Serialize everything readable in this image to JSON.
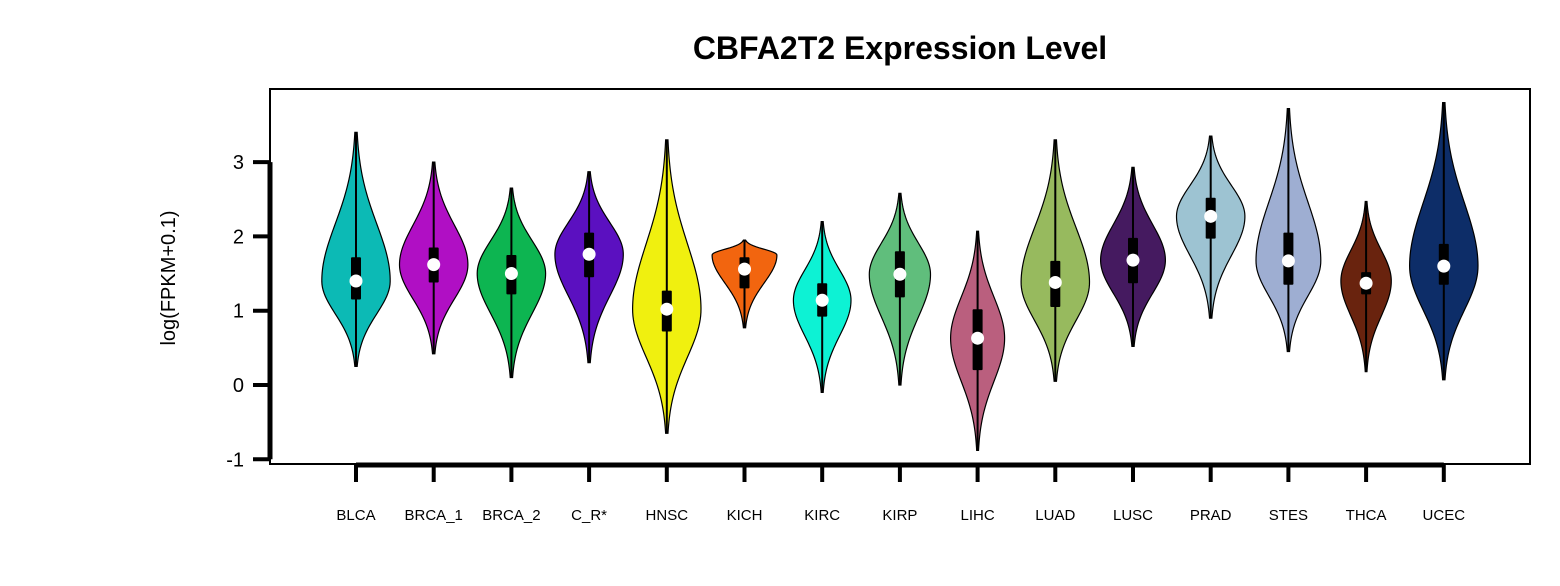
{
  "chart_data": {
    "type": "violin",
    "title": "CBFA2T2 Expression Level",
    "xlabel": "",
    "ylabel": "log(FPKM+0.1)",
    "ylim": [
      -1,
      3
    ],
    "yticks": [
      -1,
      0,
      1,
      2,
      3
    ],
    "grid": false,
    "legend": "none",
    "series": [
      {
        "category": "BLCA",
        "color": "#0CBAB5",
        "min": 0.25,
        "max": 3.4,
        "q1": 1.15,
        "median": 1.4,
        "q3": 1.72,
        "mode": 1.4,
        "peak_halfwidth": 0.95
      },
      {
        "category": "BRCA_1",
        "color": "#B00FC4",
        "min": 0.42,
        "max": 3.0,
        "q1": 1.38,
        "median": 1.62,
        "q3": 1.85,
        "mode": 1.62,
        "peak_halfwidth": 0.95
      },
      {
        "category": "BRCA_2",
        "color": "#0DB551",
        "min": 0.1,
        "max": 2.65,
        "q1": 1.22,
        "median": 1.5,
        "q3": 1.75,
        "mode": 1.5,
        "peak_halfwidth": 0.95
      },
      {
        "category": "C_R*",
        "color": "#5B10C0",
        "min": 0.3,
        "max": 2.87,
        "q1": 1.45,
        "median": 1.76,
        "q3": 2.05,
        "mode": 1.76,
        "peak_halfwidth": 0.95
      },
      {
        "category": "HNSC",
        "color": "#F0F00F",
        "min": -0.65,
        "max": 3.3,
        "q1": 0.72,
        "median": 1.02,
        "q3": 1.27,
        "mode": 1.02,
        "peak_halfwidth": 0.95
      },
      {
        "category": "KICH",
        "color": "#F2650F",
        "min": 0.77,
        "max": 1.95,
        "q1": 1.3,
        "median": 1.56,
        "q3": 1.72,
        "mode": 1.75,
        "peak_halfwidth": 0.9
      },
      {
        "category": "KIRC",
        "color": "#0DF2D4",
        "min": -0.1,
        "max": 2.2,
        "q1": 0.92,
        "median": 1.14,
        "q3": 1.37,
        "mode": 1.14,
        "peak_halfwidth": 0.8
      },
      {
        "category": "KIRP",
        "color": "#60BE7C",
        "min": 0.0,
        "max": 2.58,
        "q1": 1.18,
        "median": 1.49,
        "q3": 1.8,
        "mode": 1.49,
        "peak_halfwidth": 0.85
      },
      {
        "category": "LIHC",
        "color": "#BA5F7E",
        "min": -0.88,
        "max": 2.07,
        "q1": 0.2,
        "median": 0.63,
        "q3": 1.02,
        "mode": 0.63,
        "peak_halfwidth": 0.75
      },
      {
        "category": "LUAD",
        "color": "#97BA5E",
        "min": 0.05,
        "max": 3.3,
        "q1": 1.05,
        "median": 1.38,
        "q3": 1.67,
        "mode": 1.38,
        "peak_halfwidth": 0.95
      },
      {
        "category": "LUSC",
        "color": "#451A60",
        "min": 0.52,
        "max": 2.93,
        "q1": 1.37,
        "median": 1.68,
        "q3": 1.98,
        "mode": 1.68,
        "peak_halfwidth": 0.9
      },
      {
        "category": "PRAD",
        "color": "#9DC3D2",
        "min": 0.9,
        "max": 3.35,
        "q1": 1.97,
        "median": 2.27,
        "q3": 2.52,
        "mode": 2.27,
        "peak_halfwidth": 0.95
      },
      {
        "category": "STES",
        "color": "#9EAED2",
        "min": 0.45,
        "max": 3.72,
        "q1": 1.35,
        "median": 1.67,
        "q3": 2.05,
        "mode": 1.67,
        "peak_halfwidth": 0.9
      },
      {
        "category": "THCA",
        "color": "#69230E",
        "min": 0.18,
        "max": 2.47,
        "q1": 1.22,
        "median": 1.37,
        "q3": 1.52,
        "mode": 1.4,
        "peak_halfwidth": 0.7
      },
      {
        "category": "UCEC",
        "color": "#0D2D68",
        "min": 0.07,
        "max": 3.8,
        "q1": 1.35,
        "median": 1.6,
        "q3": 1.9,
        "mode": 1.6,
        "peak_halfwidth": 0.95
      }
    ]
  }
}
